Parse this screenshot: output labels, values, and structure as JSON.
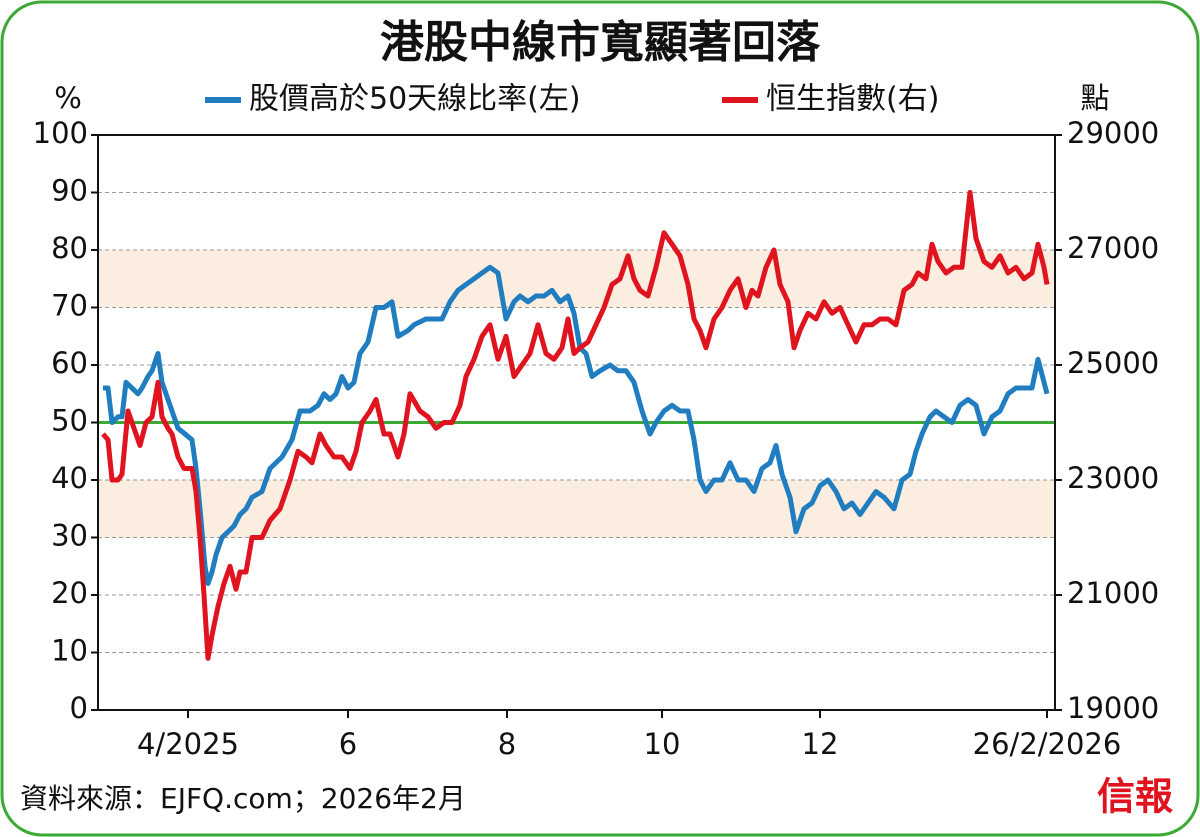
{
  "chart_data": {
    "type": "line",
    "title": "港股中線市寬顯著回落",
    "y_label": "%",
    "y2_label": "點",
    "source": "資料來源：EJFQ.com；2026年2月",
    "logo": "信報",
    "xlim": [
      98,
      1055
    ],
    "xticks": [
      {
        "value": 188,
        "label": "4/2025"
      },
      {
        "value": 348,
        "label": "6"
      },
      {
        "value": 507,
        "label": "8"
      },
      {
        "value": 662,
        "label": "10"
      },
      {
        "value": 820,
        "label": "12"
      },
      {
        "value": 1047,
        "label": "26/2/2026"
      }
    ],
    "ylim": [
      0,
      100
    ],
    "yticks": [
      0,
      10,
      20,
      30,
      40,
      50,
      60,
      70,
      80,
      90,
      100
    ],
    "y2lim": [
      19000,
      29000
    ],
    "y2ticks": [
      19000,
      21000,
      23000,
      25000,
      27000,
      29000
    ],
    "grid": true,
    "bands": [
      {
        "from": 30,
        "to": 40,
        "color": "#fbede0"
      },
      {
        "from": 70,
        "to": 80,
        "color": "#fbede0"
      }
    ],
    "reference_line": {
      "value": 50,
      "color": "#3aaa35"
    },
    "series": [
      {
        "name": "股價高於50天線比率(左)",
        "color": "#1f7dc0",
        "axis": "y",
        "x": [
          103,
          108,
          112,
          118,
          122,
          126,
          132,
          138,
          142,
          148,
          152,
          158,
          162,
          168,
          172,
          178,
          185,
          192,
          196,
          200,
          205,
          208,
          212,
          216,
          222,
          228,
          234,
          240,
          246,
          252,
          262,
          270,
          282,
          292,
          300,
          310,
          318,
          324,
          330,
          336,
          342,
          348,
          354,
          360,
          368,
          376,
          384,
          392,
          398,
          408,
          414,
          426,
          434,
          442,
          450,
          458,
          466,
          474,
          482,
          490,
          498,
          506,
          514,
          520,
          528,
          536,
          544,
          552,
          560,
          568,
          574,
          580,
          586,
          592,
          600,
          610,
          618,
          626,
          634,
          642,
          650,
          656,
          664,
          672,
          680,
          688,
          694,
          700,
          706,
          714,
          722,
          730,
          738,
          746,
          754,
          762,
          770,
          776,
          782,
          790,
          796,
          804,
          812,
          820,
          828,
          836,
          844,
          852,
          860,
          868,
          876,
          884,
          894,
          902,
          910,
          916,
          922,
          930,
          936,
          944,
          952,
          960,
          968,
          976,
          984,
          992,
          1000,
          1008,
          1016,
          1024,
          1032,
          1038,
          1044,
          1047
        ],
        "values": [
          56,
          56,
          50,
          51,
          51,
          57,
          56,
          55,
          56,
          58,
          59,
          62,
          57,
          54,
          52,
          49,
          48,
          47,
          42,
          35,
          25,
          22,
          24,
          27,
          30,
          31,
          32,
          34,
          35,
          37,
          38,
          42,
          44,
          47,
          52,
          52,
          53,
          55,
          54,
          55,
          58,
          56,
          57,
          62,
          64,
          70,
          70,
          71,
          65,
          66,
          67,
          68,
          68,
          68,
          71,
          73,
          74,
          75,
          76,
          77,
          76,
          68,
          71,
          72,
          71,
          72,
          72,
          73,
          71,
          72,
          69,
          63,
          62,
          58,
          59,
          60,
          59,
          59,
          57,
          52,
          48,
          50,
          52,
          53,
          52,
          52,
          47,
          40,
          38,
          40,
          40,
          43,
          40,
          40,
          38,
          42,
          43,
          46,
          41,
          37,
          31,
          35,
          36,
          39,
          40,
          38,
          35,
          36,
          34,
          36,
          38,
          37,
          35,
          40,
          41,
          45,
          48,
          51,
          52,
          51,
          50,
          53,
          54,
          53,
          48,
          51,
          52,
          55,
          56,
          56,
          56,
          61,
          57,
          55
        ]
      },
      {
        "name": "恒生指數(右)",
        "color": "#e0141e",
        "axis": "y2",
        "x": [
          103,
          108,
          112,
          118,
          122,
          128,
          134,
          140,
          146,
          152,
          158,
          162,
          168,
          172,
          178,
          184,
          192,
          196,
          200,
          204,
          208,
          212,
          218,
          224,
          230,
          236,
          240,
          246,
          252,
          262,
          270,
          280,
          290,
          298,
          306,
          312,
          320,
          326,
          334,
          342,
          350,
          356,
          362,
          370,
          376,
          384,
          390,
          398,
          404,
          410,
          420,
          428,
          436,
          444,
          452,
          460,
          466,
          474,
          482,
          490,
          498,
          506,
          514,
          522,
          530,
          538,
          546,
          554,
          562,
          568,
          574,
          580,
          588,
          596,
          604,
          612,
          620,
          628,
          634,
          640,
          648,
          656,
          664,
          672,
          680,
          688,
          694,
          700,
          706,
          714,
          722,
          730,
          738,
          746,
          752,
          758,
          766,
          774,
          780,
          788,
          794,
          800,
          808,
          816,
          824,
          832,
          840,
          848,
          856,
          864,
          872,
          880,
          888,
          896,
          904,
          912,
          918,
          926,
          932,
          938,
          946,
          954,
          962,
          970,
          976,
          984,
          992,
          1000,
          1008,
          1016,
          1024,
          1032,
          1038,
          1044,
          1047
        ],
        "values": [
          23800,
          23700,
          23000,
          23000,
          23100,
          24200,
          23900,
          23600,
          24000,
          24100,
          24700,
          24100,
          23900,
          23800,
          23400,
          23200,
          23200,
          22800,
          22000,
          21000,
          19900,
          20300,
          20800,
          21200,
          21500,
          21100,
          21400,
          21400,
          22000,
          22000,
          22300,
          22500,
          23000,
          23500,
          23400,
          23300,
          23800,
          23600,
          23400,
          23400,
          23200,
          23500,
          24000,
          24200,
          24400,
          23800,
          23800,
          23400,
          23800,
          24500,
          24200,
          24100,
          23900,
          24000,
          24000,
          24300,
          24800,
          25100,
          25500,
          25700,
          25100,
          25500,
          24800,
          25000,
          25200,
          25700,
          25200,
          25100,
          25300,
          25800,
          25200,
          25300,
          25400,
          25700,
          26000,
          26400,
          26500,
          26900,
          26500,
          26300,
          26200,
          26700,
          27300,
          27100,
          26900,
          26400,
          25800,
          25600,
          25300,
          25800,
          26000,
          26300,
          26500,
          26000,
          26300,
          26200,
          26700,
          27000,
          26400,
          26100,
          25300,
          25600,
          25900,
          25800,
          26100,
          25900,
          26000,
          25700,
          25400,
          25700,
          25700,
          25800,
          25800,
          25700,
          26300,
          26400,
          26600,
          26500,
          27100,
          26800,
          26600,
          26700,
          26700,
          28000,
          27200,
          26800,
          26700,
          26900,
          26600,
          26700,
          26500,
          26600,
          27100,
          26700,
          26400
        ]
      }
    ]
  }
}
